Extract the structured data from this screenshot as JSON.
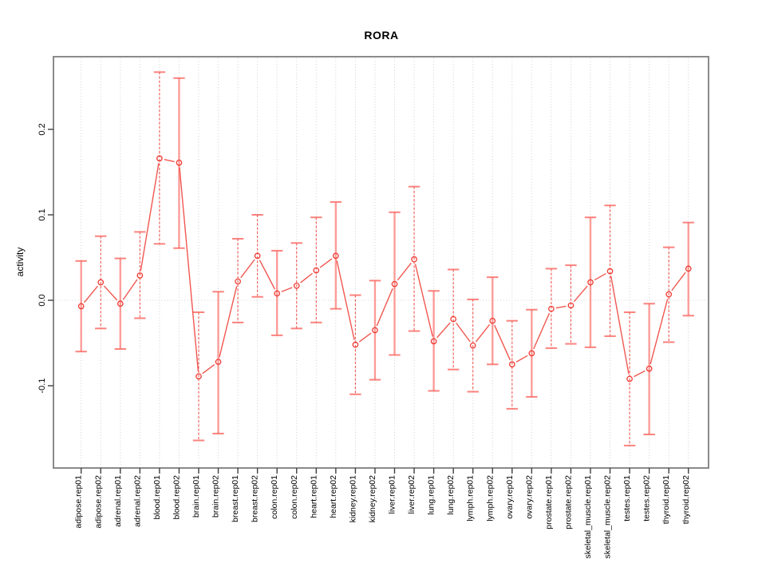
{
  "chart_data": {
    "type": "line",
    "title": "RORA",
    "xlabel": "",
    "ylabel": "activity",
    "ylim": [
      -0.196,
      0.285
    ],
    "ytick_values": [
      -0.1,
      0.0,
      0.1,
      0.2
    ],
    "ytick_labels": [
      "-0.1",
      "0.0",
      "0.1",
      "0.2"
    ],
    "grid": {
      "vertical_dotted_per_category": true,
      "zero_line_dotted": true,
      "legend": "none"
    },
    "marker": "open-circle",
    "categories": [
      "adipose.rep01",
      "adipose.rep02",
      "adrenal.rep01",
      "adrenal.rep02",
      "blood.rep01",
      "blood.rep02",
      "brain.rep01",
      "brain.rep02",
      "breast.rep01",
      "breast.rep02",
      "colon.rep01",
      "colon.rep02",
      "heart.rep01",
      "heart.rep02",
      "kidney.rep01",
      "kidney.rep02",
      "liver.rep01",
      "liver.rep02",
      "lung.rep01",
      "lung.rep02",
      "lymph.rep01",
      "lymph.rep02",
      "ovary.rep01",
      "ovary.rep02",
      "prostate.rep01",
      "prostate.rep02",
      "skeletal_muscle.rep01",
      "skeletal_muscle.rep02",
      "testes.rep01",
      "testes.rep02",
      "thyroid.rep01",
      "thyroid.rep02"
    ],
    "series": [
      {
        "name": "activity",
        "values": [
          -0.007,
          0.021,
          -0.004,
          0.029,
          0.166,
          0.161,
          -0.089,
          -0.072,
          0.022,
          0.052,
          0.008,
          0.017,
          0.035,
          0.052,
          -0.052,
          -0.035,
          0.019,
          0.048,
          -0.048,
          -0.022,
          -0.053,
          -0.024,
          -0.075,
          -0.062,
          -0.01,
          -0.006,
          0.021,
          0.034,
          -0.092,
          -0.08,
          0.007,
          0.037
        ],
        "error_high": [
          0.046,
          0.075,
          0.049,
          0.08,
          0.267,
          0.26,
          -0.014,
          0.01,
          0.072,
          0.1,
          0.058,
          0.067,
          0.097,
          0.115,
          0.006,
          0.023,
          0.103,
          0.133,
          0.011,
          0.036,
          0.001,
          0.027,
          -0.024,
          -0.011,
          0.037,
          0.041,
          0.097,
          0.111,
          -0.014,
          -0.004,
          0.062,
          0.091
        ],
        "error_low": [
          -0.06,
          -0.033,
          -0.057,
          -0.021,
          0.066,
          0.061,
          -0.164,
          -0.156,
          -0.026,
          0.004,
          -0.041,
          -0.033,
          -0.026,
          -0.01,
          -0.11,
          -0.093,
          -0.064,
          -0.036,
          -0.106,
          -0.081,
          -0.107,
          -0.075,
          -0.127,
          -0.113,
          -0.056,
          -0.051,
          -0.055,
          -0.042,
          -0.17,
          -0.157,
          -0.049,
          -0.018
        ],
        "bar_styles": [
          "solid",
          "dashed",
          "solid",
          "dashed",
          "dashed",
          "solid",
          "dashed",
          "solid",
          "dashed",
          "dashed",
          "solid",
          "dashed",
          "dashed",
          "solid",
          "dashed",
          "solid",
          "solid",
          "dashed",
          "solid",
          "dashed",
          "dashed",
          "solid",
          "dashed",
          "solid",
          "dashed",
          "dashed",
          "solid",
          "dashed",
          "dashed",
          "solid",
          "dashed",
          "solid"
        ]
      }
    ],
    "colors": {
      "series_line": "#ef453e",
      "point_stroke": "#ee3b33",
      "error_bar_solid": "#ff6059",
      "error_bar_dashed": "#ef3b34",
      "error_cap": "#fb655f",
      "grid": "#cfcfcf",
      "zero_line": "#d4d4d4",
      "frame": "#8a8a8a",
      "tick": "#3f3f3f",
      "text": "#000000"
    }
  }
}
